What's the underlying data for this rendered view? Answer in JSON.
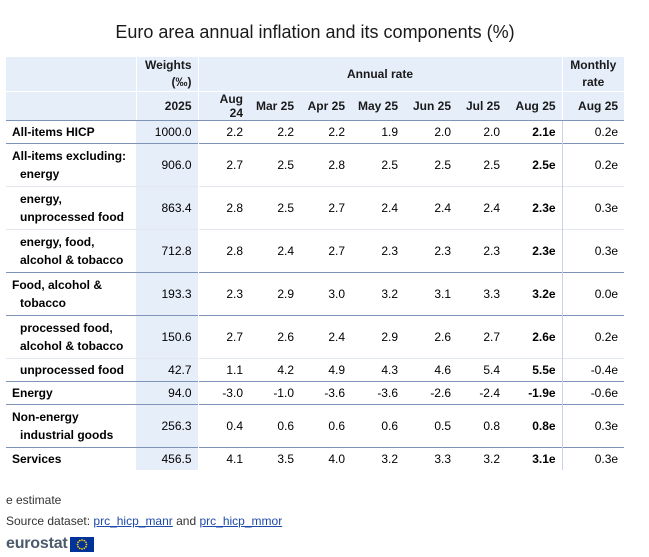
{
  "chart_data": {
    "type": "table",
    "title": "Euro area annual inflation and its components (%)",
    "header": {
      "weights": "Weights",
      "weights_unit": "(‰)",
      "annual_rate": "Annual rate",
      "monthly_rate_line1": "Monthly",
      "monthly_rate_line2": "rate"
    },
    "weights_year": "2025",
    "annual_columns": [
      "Aug 24",
      "Mar 25",
      "Apr 25",
      "May 25",
      "Jun 25",
      "Jul 25",
      "Aug 25"
    ],
    "monthly_column": "Aug 25",
    "rows": [
      {
        "label1": "All-items HICP",
        "label2": "",
        "weight": "1000.0",
        "annual": [
          "2.2",
          "2.2",
          "2.2",
          "1.9",
          "2.0",
          "2.0",
          "2.1e"
        ],
        "monthly": "0.2e"
      },
      {
        "label1": "All-items excluding:",
        "label2": "energy",
        "weight": "906.0",
        "annual": [
          "2.7",
          "2.5",
          "2.8",
          "2.5",
          "2.5",
          "2.5",
          "2.5e"
        ],
        "monthly": "0.2e"
      },
      {
        "label1": "energy,",
        "label2": "unprocessed food",
        "weight": "863.4",
        "annual": [
          "2.8",
          "2.5",
          "2.7",
          "2.4",
          "2.4",
          "2.4",
          "2.3e"
        ],
        "monthly": "0.3e"
      },
      {
        "label1": "energy, food,",
        "label2": "alcohol & tobacco",
        "weight": "712.8",
        "annual": [
          "2.8",
          "2.4",
          "2.7",
          "2.3",
          "2.3",
          "2.3",
          "2.3e"
        ],
        "monthly": "0.3e"
      },
      {
        "label1": "Food, alcohol &",
        "label2": "tobacco",
        "weight": "193.3",
        "annual": [
          "2.3",
          "2.9",
          "3.0",
          "3.2",
          "3.1",
          "3.3",
          "3.2e"
        ],
        "monthly": "0.0e"
      },
      {
        "label1": "processed food,",
        "label2": "alcohol & tobacco",
        "weight": "150.6",
        "annual": [
          "2.7",
          "2.6",
          "2.4",
          "2.9",
          "2.6",
          "2.7",
          "2.6e"
        ],
        "monthly": "0.2e"
      },
      {
        "label1": "unprocessed food",
        "label2": "",
        "weight": "42.7",
        "annual": [
          "1.1",
          "4.2",
          "4.9",
          "4.3",
          "4.6",
          "5.4",
          "5.5e"
        ],
        "monthly": "-0.4e"
      },
      {
        "label1": "Energy",
        "label2": "",
        "weight": "94.0",
        "annual": [
          "-3.0",
          "-1.0",
          "-3.6",
          "-3.6",
          "-2.6",
          "-2.4",
          "-1.9e"
        ],
        "monthly": "-0.6e"
      },
      {
        "label1": "Non-energy",
        "label2": "industrial goods",
        "weight": "256.3",
        "annual": [
          "0.4",
          "0.6",
          "0.6",
          "0.6",
          "0.5",
          "0.8",
          "0.8e"
        ],
        "monthly": "0.3e"
      },
      {
        "label1": "Services",
        "label2": "",
        "weight": "456.5",
        "annual": [
          "4.1",
          "3.5",
          "4.0",
          "3.2",
          "3.3",
          "3.2",
          "3.1e"
        ],
        "monthly": "0.3e"
      }
    ]
  },
  "footer": {
    "note": "e estimate",
    "source_prefix": "Source dataset:",
    "link1": "prc_hicp_manr",
    "connector": "and",
    "link2": "prc_hicp_mmor"
  },
  "logo": {
    "text": "eurostat"
  }
}
